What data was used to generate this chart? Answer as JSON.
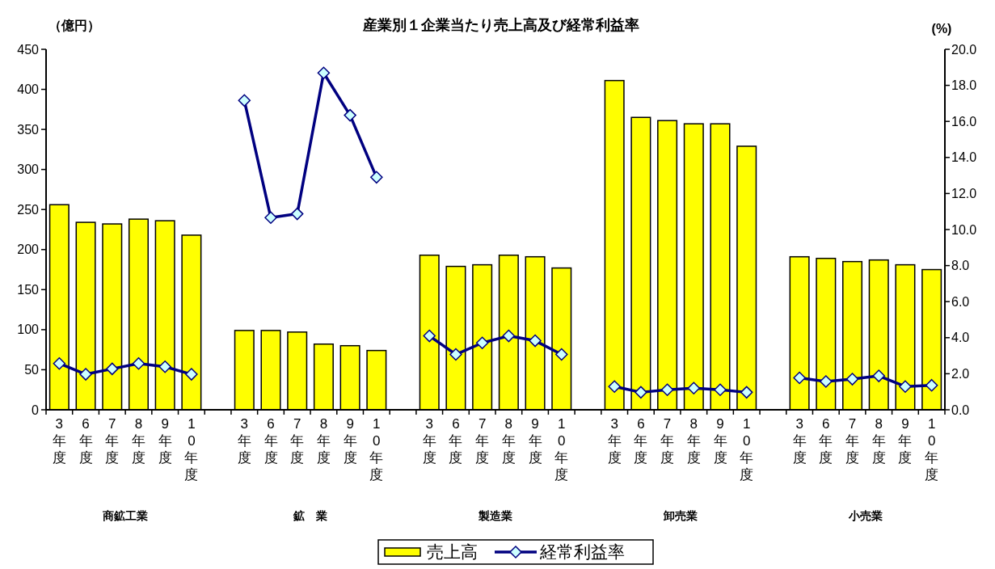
{
  "chart_data": {
    "type": "bar",
    "title": "産業別１企業当たり売上高及び経常利益率",
    "ylabel": "（億円）",
    "y2label": "(%)",
    "categories": [
      "3年度",
      "6年度",
      "7年度",
      "8年度",
      "9年度",
      "10年度",
      null,
      "3年度",
      "6年度",
      "7年度",
      "8年度",
      "9年度",
      "10年度",
      null,
      "3年度",
      "6年度",
      "7年度",
      "8年度",
      "9年度",
      "10年度",
      null,
      "3年度",
      "6年度",
      "7年度",
      "8年度",
      "9年度",
      "10年度",
      null,
      "3年度",
      "6年度",
      "7年度",
      "8年度",
      "9年度",
      "10年度"
    ],
    "annotations": [
      "商鉱工業",
      "鉱　業",
      "製造業",
      "卸売業",
      "小売業"
    ],
    "series": [
      {
        "name": "売上高",
        "color": "#ffff00",
        "values": [
          256,
          234,
          232,
          238,
          236,
          218,
          null,
          99,
          99,
          97,
          82,
          80,
          74,
          null,
          193,
          179,
          181,
          193,
          191,
          177,
          null,
          411,
          365,
          361,
          357,
          357,
          329,
          null,
          191,
          189,
          185,
          187,
          181,
          175
        ]
      },
      {
        "name": "経常利益率",
        "type": "line",
        "axis": "y2",
        "color": "#000080",
        "values": [
          2.57,
          1.97,
          2.27,
          2.57,
          2.39,
          1.97,
          null,
          17.16,
          10.66,
          10.87,
          18.69,
          16.34,
          12.9,
          null,
          4.1,
          3.07,
          3.71,
          4.1,
          3.83,
          3.07,
          null,
          1.29,
          0.97,
          1.11,
          1.2,
          1.11,
          0.97,
          null,
          1.77,
          1.57,
          1.7,
          1.88,
          1.29,
          1.36
        ]
      }
    ],
    "ylim": [
      0,
      450
    ],
    "yticks": [
      0,
      50,
      100,
      150,
      200,
      250,
      300,
      350,
      400,
      450
    ],
    "y2lim": [
      0,
      20
    ],
    "y2ticks": [
      {
        "value": 0,
        "label": "0.0"
      },
      {
        "value": 2,
        "label": "2.0"
      },
      {
        "value": 4,
        "label": "4.0"
      },
      {
        "value": 6,
        "label": "6.0"
      },
      {
        "value": 8,
        "label": "8.0"
      },
      {
        "value": 10,
        "label": "10.0"
      },
      {
        "value": 12,
        "label": "12.0"
      },
      {
        "value": 14,
        "label": "14.0"
      },
      {
        "value": 16,
        "label": "16.0"
      },
      {
        "value": 18,
        "label": "18.0"
      },
      {
        "value": 20,
        "label": "20.0"
      }
    ],
    "marker": "diamond",
    "legend": "bottom",
    "grid": false
  }
}
